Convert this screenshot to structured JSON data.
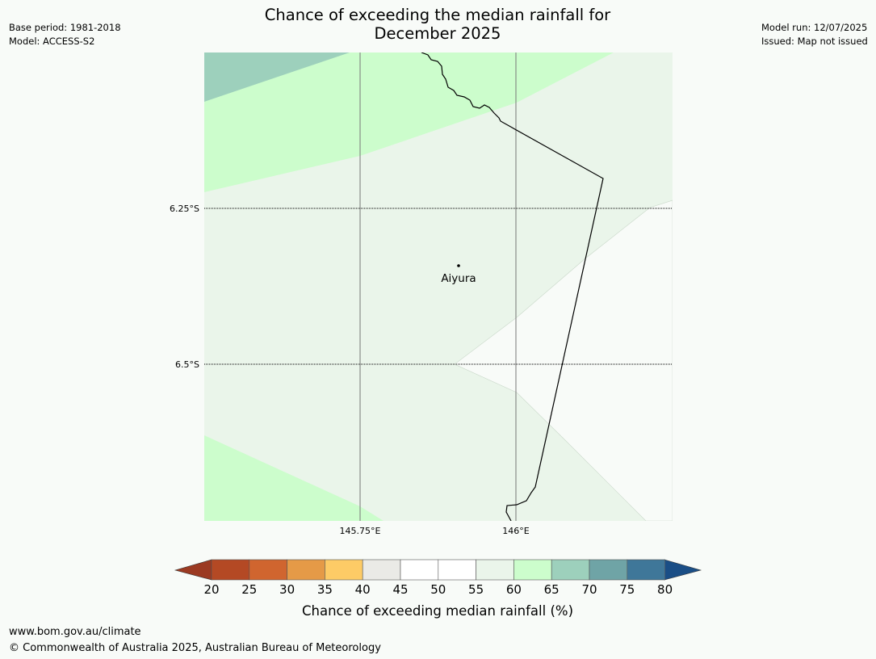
{
  "header": {
    "title_line1": "Chance of exceeding the median rainfall for",
    "title_line2": "December 2025",
    "base_period": "Base period: 1981-2018",
    "model": "Model: ACCESS-S2",
    "model_run": "Model run: 12/07/2025",
    "issued": "Issued: Map not issued"
  },
  "map": {
    "place_label": "Aiyura",
    "lat_labels": [
      "6.25°S",
      "6.5°S"
    ],
    "lon_labels": [
      "145.75°E",
      "146°E"
    ]
  },
  "colorbar": {
    "title": "Chance of exceeding median rainfall (%)",
    "ticks": [
      "20",
      "25",
      "30",
      "35",
      "40",
      "45",
      "50",
      "55",
      "60",
      "65",
      "70",
      "75",
      "80"
    ],
    "colors": {
      "below_20": "#9b3a22",
      "20_25": "#b44924",
      "25_30": "#d0652f",
      "30_35": "#e59a47",
      "35_40": "#fdcb66",
      "40_45": "#eaeae6",
      "45_50": "#ffffff",
      "50_55": "#ffffff",
      "55_60": "#eaf5ea",
      "60_65": "#ccfdcc",
      "65_70": "#9dd0bc",
      "70_75": "#6fa4a6",
      "75_80": "#3f7799",
      "above_80": "#1a4e86"
    }
  },
  "footer": {
    "url": "www.bom.gov.au/climate",
    "copyright": "© Commonwealth of Australia 2025, Australian Bureau of Meteorology"
  }
}
